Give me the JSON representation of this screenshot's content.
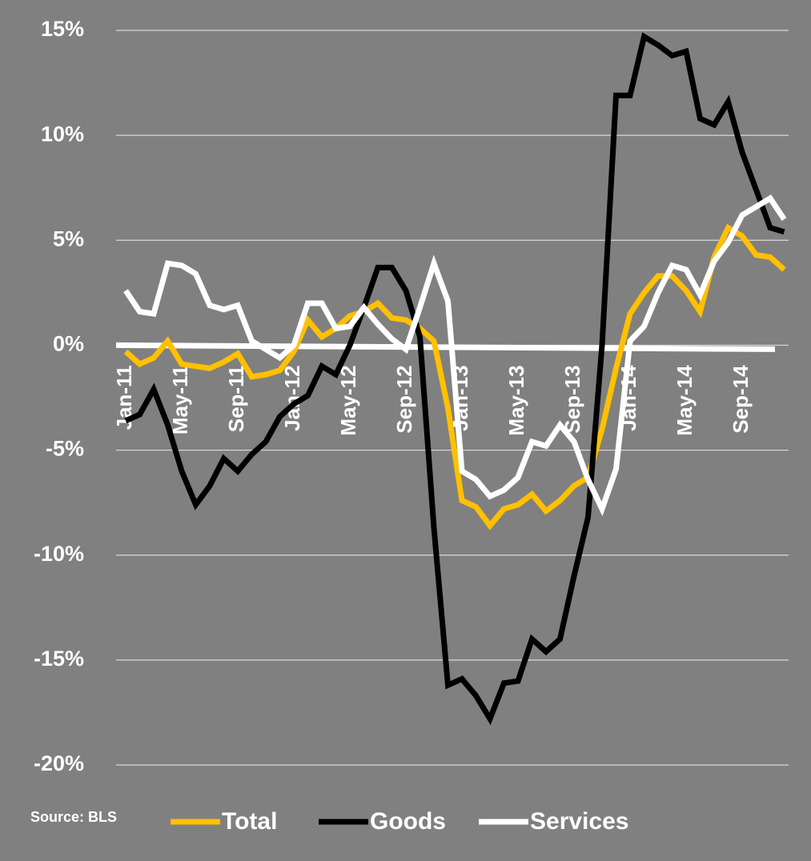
{
  "chart_data": {
    "type": "line",
    "source": "Source: BLS",
    "categories": [
      "Jan-11",
      null,
      null,
      null,
      "May-11",
      null,
      null,
      null,
      "Sep-11",
      null,
      null,
      null,
      "Jan-12",
      null,
      null,
      null,
      "May-12",
      null,
      null,
      null,
      "Sep-12",
      null,
      null,
      null,
      "Jan-13",
      null,
      null,
      null,
      "May-13",
      null,
      null,
      null,
      "Sep-13",
      null,
      null,
      null,
      "Jan-14",
      null,
      null,
      null,
      "May-14",
      null,
      null,
      null,
      "Sep-14",
      null,
      null,
      null
    ],
    "series": [
      {
        "name": "Total",
        "color": "#ffc000",
        "values": [
          -0.3,
          -0.9,
          -0.6,
          0.2,
          -0.9,
          -1.0,
          -1.1,
          -0.8,
          -0.4,
          -1.5,
          -1.4,
          -1.2,
          -0.3,
          1.2,
          0.4,
          0.8,
          1.4,
          1.6,
          2.0,
          1.3,
          1.2,
          0.8,
          0.2,
          -3.0,
          -7.4,
          -7.7,
          -8.6,
          -7.8,
          -7.6,
          -7.1,
          -7.9,
          -7.4,
          -6.7,
          -6.3,
          -4.0,
          -1.1,
          1.5,
          2.5,
          3.3,
          3.3,
          2.6,
          1.6,
          4.2,
          5.6,
          5.2,
          4.3,
          4.2,
          3.6
        ]
      },
      {
        "name": "Goods",
        "color": "#000000",
        "values": [
          -3.6,
          -3.3,
          -2.1,
          -3.8,
          -6.0,
          -7.6,
          -6.7,
          -5.4,
          -6.0,
          -5.2,
          -4.6,
          -3.4,
          -2.8,
          -2.4,
          -1.0,
          -1.4,
          0.0,
          1.8,
          3.7,
          3.7,
          2.6,
          0.4,
          -8.7,
          -16.2,
          -15.9,
          -16.7,
          -17.8,
          -16.1,
          -16.0,
          -14.0,
          -14.6,
          -14.0,
          -11.0,
          -8.2,
          0.0,
          11.9,
          11.9,
          14.7,
          14.3,
          13.8,
          14.0,
          10.8,
          10.5,
          11.6,
          9.2,
          7.4,
          5.6,
          5.4
        ]
      },
      {
        "name": "Services",
        "color": "#ffffff",
        "values": [
          2.6,
          1.6,
          1.5,
          3.9,
          3.8,
          3.4,
          1.9,
          1.7,
          1.9,
          0.2,
          -0.2,
          -0.6,
          0.0,
          2.0,
          2.0,
          0.8,
          0.9,
          1.8,
          1.0,
          0.3,
          -0.2,
          1.8,
          3.9,
          2.1,
          -6.0,
          -6.4,
          -7.2,
          -6.9,
          -6.3,
          -4.6,
          -4.8,
          -3.8,
          -4.6,
          -6.4,
          -7.8,
          -5.9,
          0.2,
          0.9,
          2.5,
          3.8,
          3.6,
          2.4,
          4.0,
          4.9,
          6.2,
          6.6,
          7.0,
          6.0
        ]
      }
    ],
    "ylim": [
      -20,
      15
    ],
    "yticks": [
      {
        "value": 15,
        "label": "15%"
      },
      {
        "value": 10,
        "label": "10%"
      },
      {
        "value": 5,
        "label": "5%"
      },
      {
        "value": 0,
        "label": "0%"
      },
      {
        "value": -5,
        "label": "-5%"
      },
      {
        "value": -10,
        "label": "-10%"
      },
      {
        "value": -15,
        "label": "-15%"
      },
      {
        "value": -20,
        "label": "-20%"
      }
    ],
    "grid": true,
    "legend": "bottom"
  }
}
